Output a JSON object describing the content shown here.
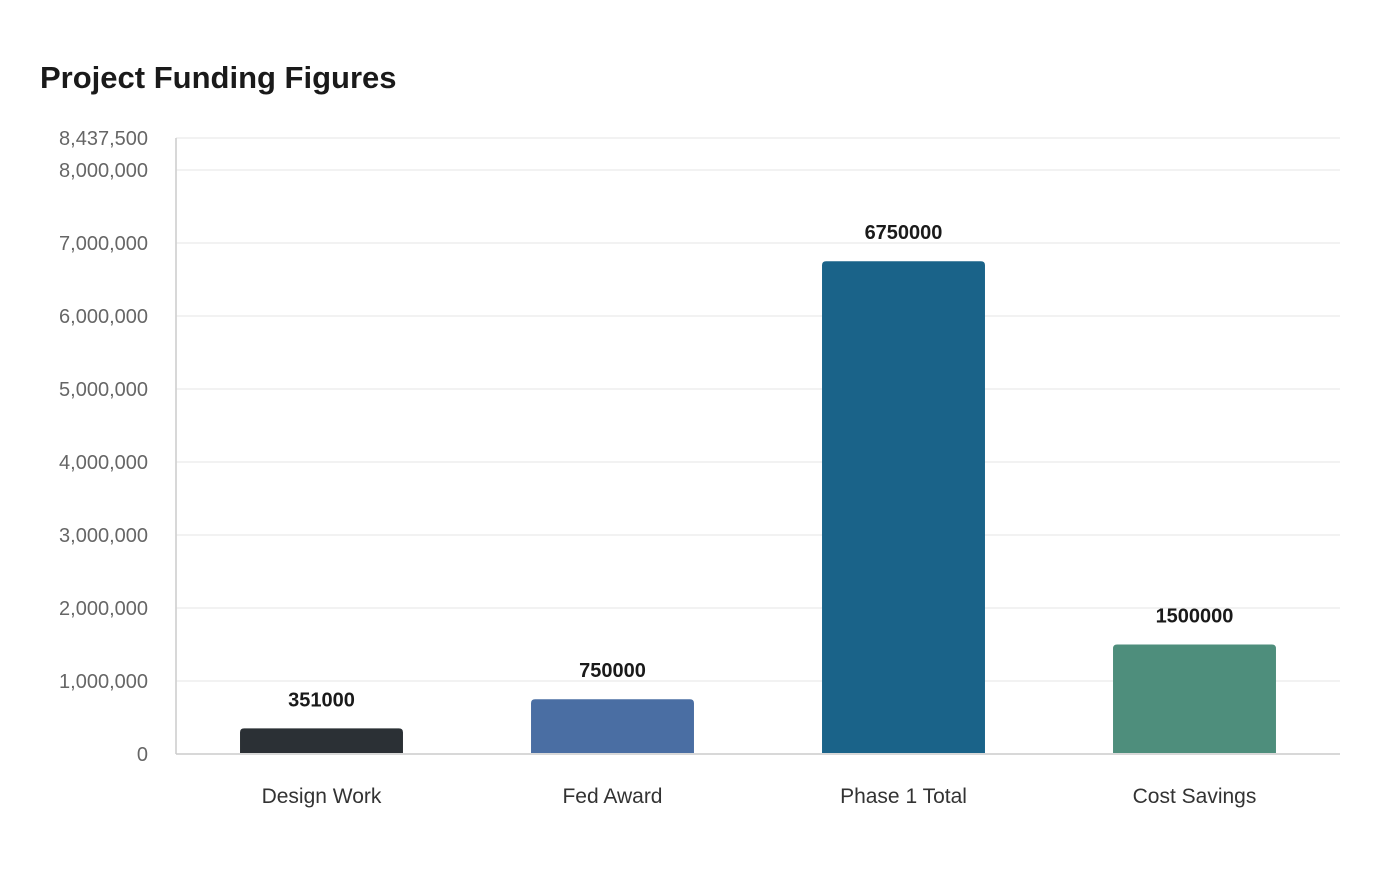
{
  "chart_data": {
    "type": "bar",
    "title": "Project Funding Figures",
    "xlabel": "",
    "ylabel": "",
    "categories": [
      "Design Work",
      "Fed Award",
      "Phase 1 Total",
      "Cost Savings"
    ],
    "values": [
      351000,
      750000,
      6750000,
      1500000
    ],
    "data_labels": [
      "351000",
      "750000",
      "6750000",
      "1500000"
    ],
    "colors": [
      "#2b3035",
      "#4a6ea3",
      "#1a6389",
      "#4e8e7c"
    ],
    "ylim": [
      0,
      8437500
    ],
    "y_ticks": [
      0,
      1000000,
      2000000,
      3000000,
      4000000,
      5000000,
      6000000,
      7000000,
      8000000,
      8437500
    ],
    "y_tick_labels": [
      "0",
      "1,000,000",
      "2,000,000",
      "3,000,000",
      "4,000,000",
      "5,000,000",
      "6,000,000",
      "7,000,000",
      "8,000,000",
      "8,437,500"
    ],
    "grid": true,
    "legend": "none"
  }
}
